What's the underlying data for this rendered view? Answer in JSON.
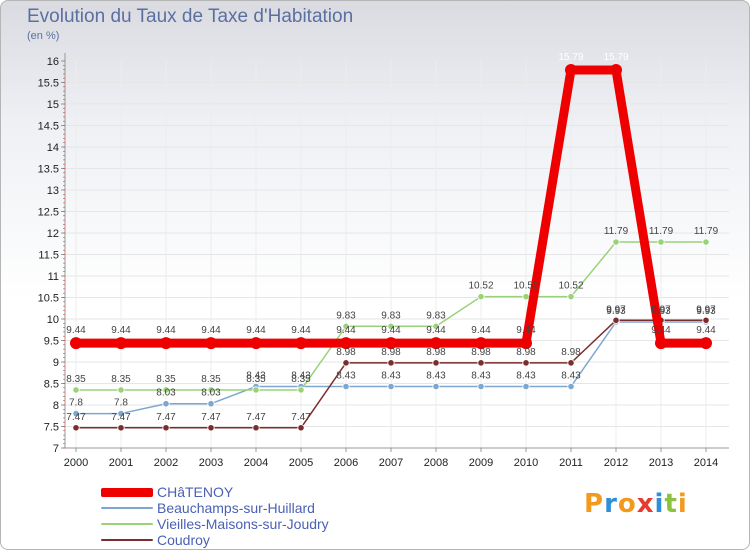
{
  "title": "Evolution du Taux de Taxe d'Habitation",
  "subtitle": "(en %)",
  "logo": "Proxiti",
  "chart_data": {
    "type": "line",
    "title": "Evolution du Taux de Taxe d'Habitation",
    "ylabel": "(en %)",
    "xlabel": "",
    "ylim": [
      7,
      16
    ],
    "y_ticks": [
      7,
      7.5,
      8,
      8.5,
      9,
      9.5,
      10,
      10.5,
      11,
      11.5,
      12,
      12.5,
      13,
      13.5,
      14,
      14.5,
      15,
      15.5,
      16
    ],
    "x": [
      "2000",
      "2001",
      "2002",
      "2003",
      "2004",
      "2005",
      "2006",
      "2007",
      "2008",
      "2009",
      "2010",
      "2011",
      "2012",
      "2013",
      "2014"
    ],
    "grid": true,
    "legend_position": "bottom-left",
    "series": [
      {
        "name": "CHâTENOY",
        "color": "#ee0000",
        "width": 9,
        "marker": 6,
        "values": [
          9.44,
          9.44,
          9.44,
          9.44,
          9.44,
          9.44,
          9.44,
          9.44,
          9.44,
          9.44,
          9.44,
          15.79,
          15.79,
          9.44,
          9.44
        ],
        "labels": [
          "9.44",
          "9.44",
          "9.44",
          "9.44",
          "9.44",
          "9.44",
          "9.44",
          "9.44",
          "9.44",
          "9.44",
          "9.44",
          "15.79",
          "15.79",
          "9.44",
          "9.44"
        ]
      },
      {
        "name": "Beauchamps-sur-Huillard",
        "color": "#7ea7d0",
        "width": 1.5,
        "marker": 3.2,
        "values": [
          7.8,
          7.8,
          8.03,
          8.03,
          8.43,
          8.43,
          8.43,
          8.43,
          8.43,
          8.43,
          8.43,
          8.43,
          9.93,
          9.93,
          9.93
        ],
        "labels": [
          "7.8",
          "7.8",
          "8.03",
          "8.03",
          "8.43",
          "8.43",
          "8.43",
          "8.43",
          "8.43",
          "8.43",
          "8.43",
          "8.43",
          "9.93",
          "9.93",
          "9.93"
        ]
      },
      {
        "name": "Vieilles-Maisons-sur-Joudry",
        "color": "#9ad27a",
        "width": 1.5,
        "marker": 3.2,
        "values": [
          8.35,
          8.35,
          8.35,
          8.35,
          8.35,
          8.35,
          9.83,
          9.83,
          9.83,
          10.52,
          10.52,
          10.52,
          11.79,
          11.79,
          11.79
        ],
        "labels": [
          "8.35",
          "8.35",
          "8.35",
          "8.35",
          "8.35",
          "8.35",
          "9.83",
          "9.83",
          "9.83",
          "10.52",
          "10.52",
          "10.52",
          "11.79",
          "11.79",
          "11.79"
        ]
      },
      {
        "name": "Coudroy",
        "color": "#7b2d2d",
        "width": 1.5,
        "marker": 3.2,
        "values": [
          7.47,
          7.47,
          7.47,
          7.47,
          7.47,
          7.47,
          8.98,
          8.98,
          8.98,
          8.98,
          8.98,
          8.98,
          9.97,
          9.97,
          9.97
        ],
        "labels": [
          "7.47",
          "7.47",
          "7.47",
          "7.47",
          "7.47",
          "7.47",
          "8.98",
          "8.98",
          "8.98",
          "8.98",
          "8.98",
          "8.98",
          "9.97",
          "9.97",
          "9.97"
        ]
      }
    ]
  }
}
